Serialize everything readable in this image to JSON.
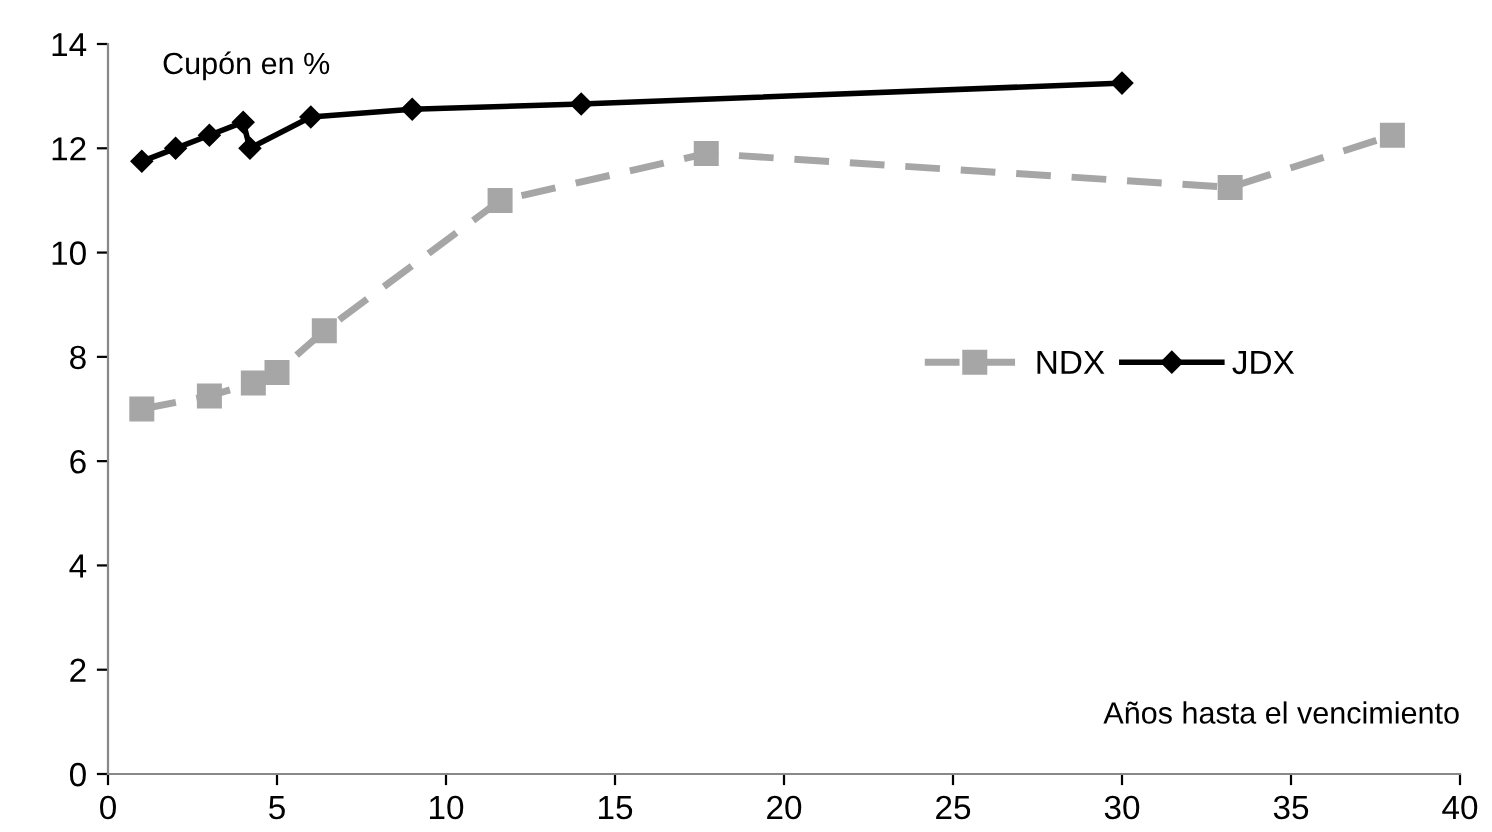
{
  "chart_data": {
    "type": "line",
    "xlabel": "Años hasta el vencimiento",
    "ylabel": "Cupón en %",
    "xlim": [
      0,
      40
    ],
    "ylim": [
      0,
      14
    ],
    "xticks": [
      0,
      5,
      10,
      15,
      20,
      25,
      30,
      35,
      40
    ],
    "yticks": [
      0,
      2,
      4,
      6,
      8,
      10,
      12,
      14
    ],
    "grid": false,
    "legend": "right",
    "series": [
      {
        "name": "NDX",
        "color": "#a6a6a6",
        "marker": "square",
        "line_style": "dashed",
        "x": [
          1,
          3,
          4.3,
          5,
          6.4,
          11.6,
          17.7,
          33.2,
          38
        ],
        "values": [
          7.0,
          7.25,
          7.5,
          7.7,
          8.5,
          11.0,
          11.9,
          11.25,
          12.25
        ]
      },
      {
        "name": "JDX",
        "color": "#000000",
        "marker": "diamond",
        "line_style": "solid",
        "x": [
          1,
          2,
          3,
          4,
          4.2,
          6,
          9,
          14,
          30
        ],
        "values": [
          11.75,
          12.0,
          12.25,
          12.5,
          12.0,
          12.6,
          12.75,
          12.85,
          13.25
        ]
      }
    ]
  }
}
